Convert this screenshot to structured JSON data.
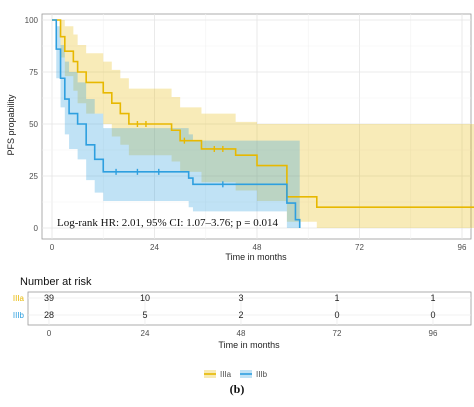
{
  "chart_data": {
    "type": "line",
    "subtype": "kaplan-meier",
    "caption": "(b)",
    "ylabel": "PFS propability",
    "xlabel": "Time in months",
    "xlim": [
      0,
      104
    ],
    "ylim": [
      0,
      100
    ],
    "x_ticks": [
      "0",
      "24",
      "48",
      "72",
      "96"
    ],
    "y_ticks": [
      "0",
      "25",
      "50",
      "75",
      "100"
    ],
    "grid": true,
    "annotation": "Log-rank HR: 2.01, 95% CI: 1.07–3.76; p = 0.014",
    "legend_position": "bottom",
    "series": [
      {
        "name": "IIIa",
        "color": "#E7B800",
        "steps": [
          [
            0,
            100
          ],
          [
            2,
            92
          ],
          [
            3,
            85
          ],
          [
            5,
            80
          ],
          [
            6,
            75
          ],
          [
            8,
            70
          ],
          [
            12,
            65
          ],
          [
            14,
            60
          ],
          [
            16,
            55
          ],
          [
            18,
            50
          ],
          [
            28,
            47
          ],
          [
            30,
            42
          ],
          [
            35,
            38
          ],
          [
            43,
            35
          ],
          [
            48,
            30
          ],
          [
            55,
            15
          ],
          [
            62,
            10
          ],
          [
            104,
            10
          ]
        ],
        "ci": [
          [
            0,
            100,
            100
          ],
          [
            2,
            100,
            82
          ],
          [
            3,
            97,
            73
          ],
          [
            5,
            93,
            66
          ],
          [
            6,
            88,
            60
          ],
          [
            8,
            84,
            55
          ],
          [
            12,
            80,
            50
          ],
          [
            14,
            76,
            44
          ],
          [
            16,
            72,
            40
          ],
          [
            18,
            67,
            35
          ],
          [
            28,
            63,
            32
          ],
          [
            30,
            58,
            27
          ],
          [
            35,
            55,
            22
          ],
          [
            43,
            51,
            18
          ],
          [
            48,
            50,
            13
          ],
          [
            55,
            50,
            3
          ],
          [
            62,
            50,
            0
          ],
          [
            104,
            50,
            0
          ]
        ],
        "censor_times": [
          20,
          22,
          31,
          38,
          40
        ]
      },
      {
        "name": "IIIb",
        "color": "#2E9FDF",
        "steps": [
          [
            0,
            100
          ],
          [
            1,
            86
          ],
          [
            2,
            72
          ],
          [
            3,
            62
          ],
          [
            4,
            55
          ],
          [
            6,
            50
          ],
          [
            8,
            40
          ],
          [
            10,
            33
          ],
          [
            12,
            27
          ],
          [
            32,
            24
          ],
          [
            33,
            21
          ],
          [
            55,
            12
          ],
          [
            57,
            4
          ],
          [
            58,
            0
          ]
        ],
        "ci": [
          [
            0,
            100,
            100
          ],
          [
            1,
            97,
            72
          ],
          [
            2,
            88,
            58
          ],
          [
            3,
            80,
            45
          ],
          [
            4,
            75,
            38
          ],
          [
            6,
            70,
            33
          ],
          [
            8,
            62,
            23
          ],
          [
            10,
            55,
            17
          ],
          [
            12,
            48,
            13
          ],
          [
            32,
            45,
            10
          ],
          [
            33,
            42,
            8
          ],
          [
            55,
            42,
            0
          ],
          [
            57,
            42,
            0
          ],
          [
            58,
            42,
            0
          ]
        ],
        "censor_times": [
          15,
          20,
          25,
          40
        ]
      }
    ],
    "risk_table": {
      "title": "Number at risk",
      "times": [
        0,
        24,
        48,
        72,
        96
      ],
      "x_ticks": [
        "0",
        "24",
        "48",
        "72",
        "96"
      ],
      "xlabel": "Time in months",
      "rows": [
        {
          "group": "IIIa",
          "color": "#E7B800",
          "values": [
            "39",
            "10",
            "3",
            "1",
            "1"
          ]
        },
        {
          "group": "IIIb",
          "color": "#2E9FDF",
          "values": [
            "28",
            "5",
            "2",
            "0",
            "0"
          ]
        }
      ]
    }
  }
}
